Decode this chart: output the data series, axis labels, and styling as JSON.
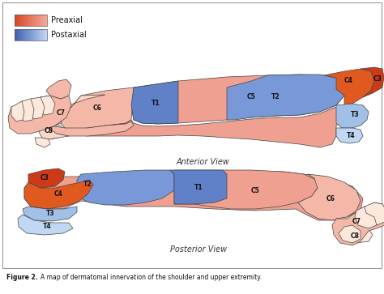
{
  "title_bold": "Figure 2.",
  "title_rest": " A map of dermatomal innervation of the shoulder and upper extremity.",
  "anterior_label": "Anterior View",
  "posterior_label": "Posterior View",
  "bg_color": "#FFFFFF",
  "colors": {
    "C3": "#CC3A18",
    "C4": "#E05A20",
    "C5": "#F0A090",
    "C6": "#F5B8A8",
    "C7": "#FAD8C8",
    "C8": "#FDE8DC",
    "T1": "#6080C8",
    "T2": "#7898D8",
    "T3": "#A0C0E8",
    "T4": "#C0D8F4",
    "arm_base": "#F5C5B5",
    "finger": "#FDE8DC",
    "preaxial_l": "#F5A090",
    "preaxial_r": "#E04020",
    "postaxial_l": "#4060B0",
    "postaxial_r": "#C0D8F8"
  }
}
